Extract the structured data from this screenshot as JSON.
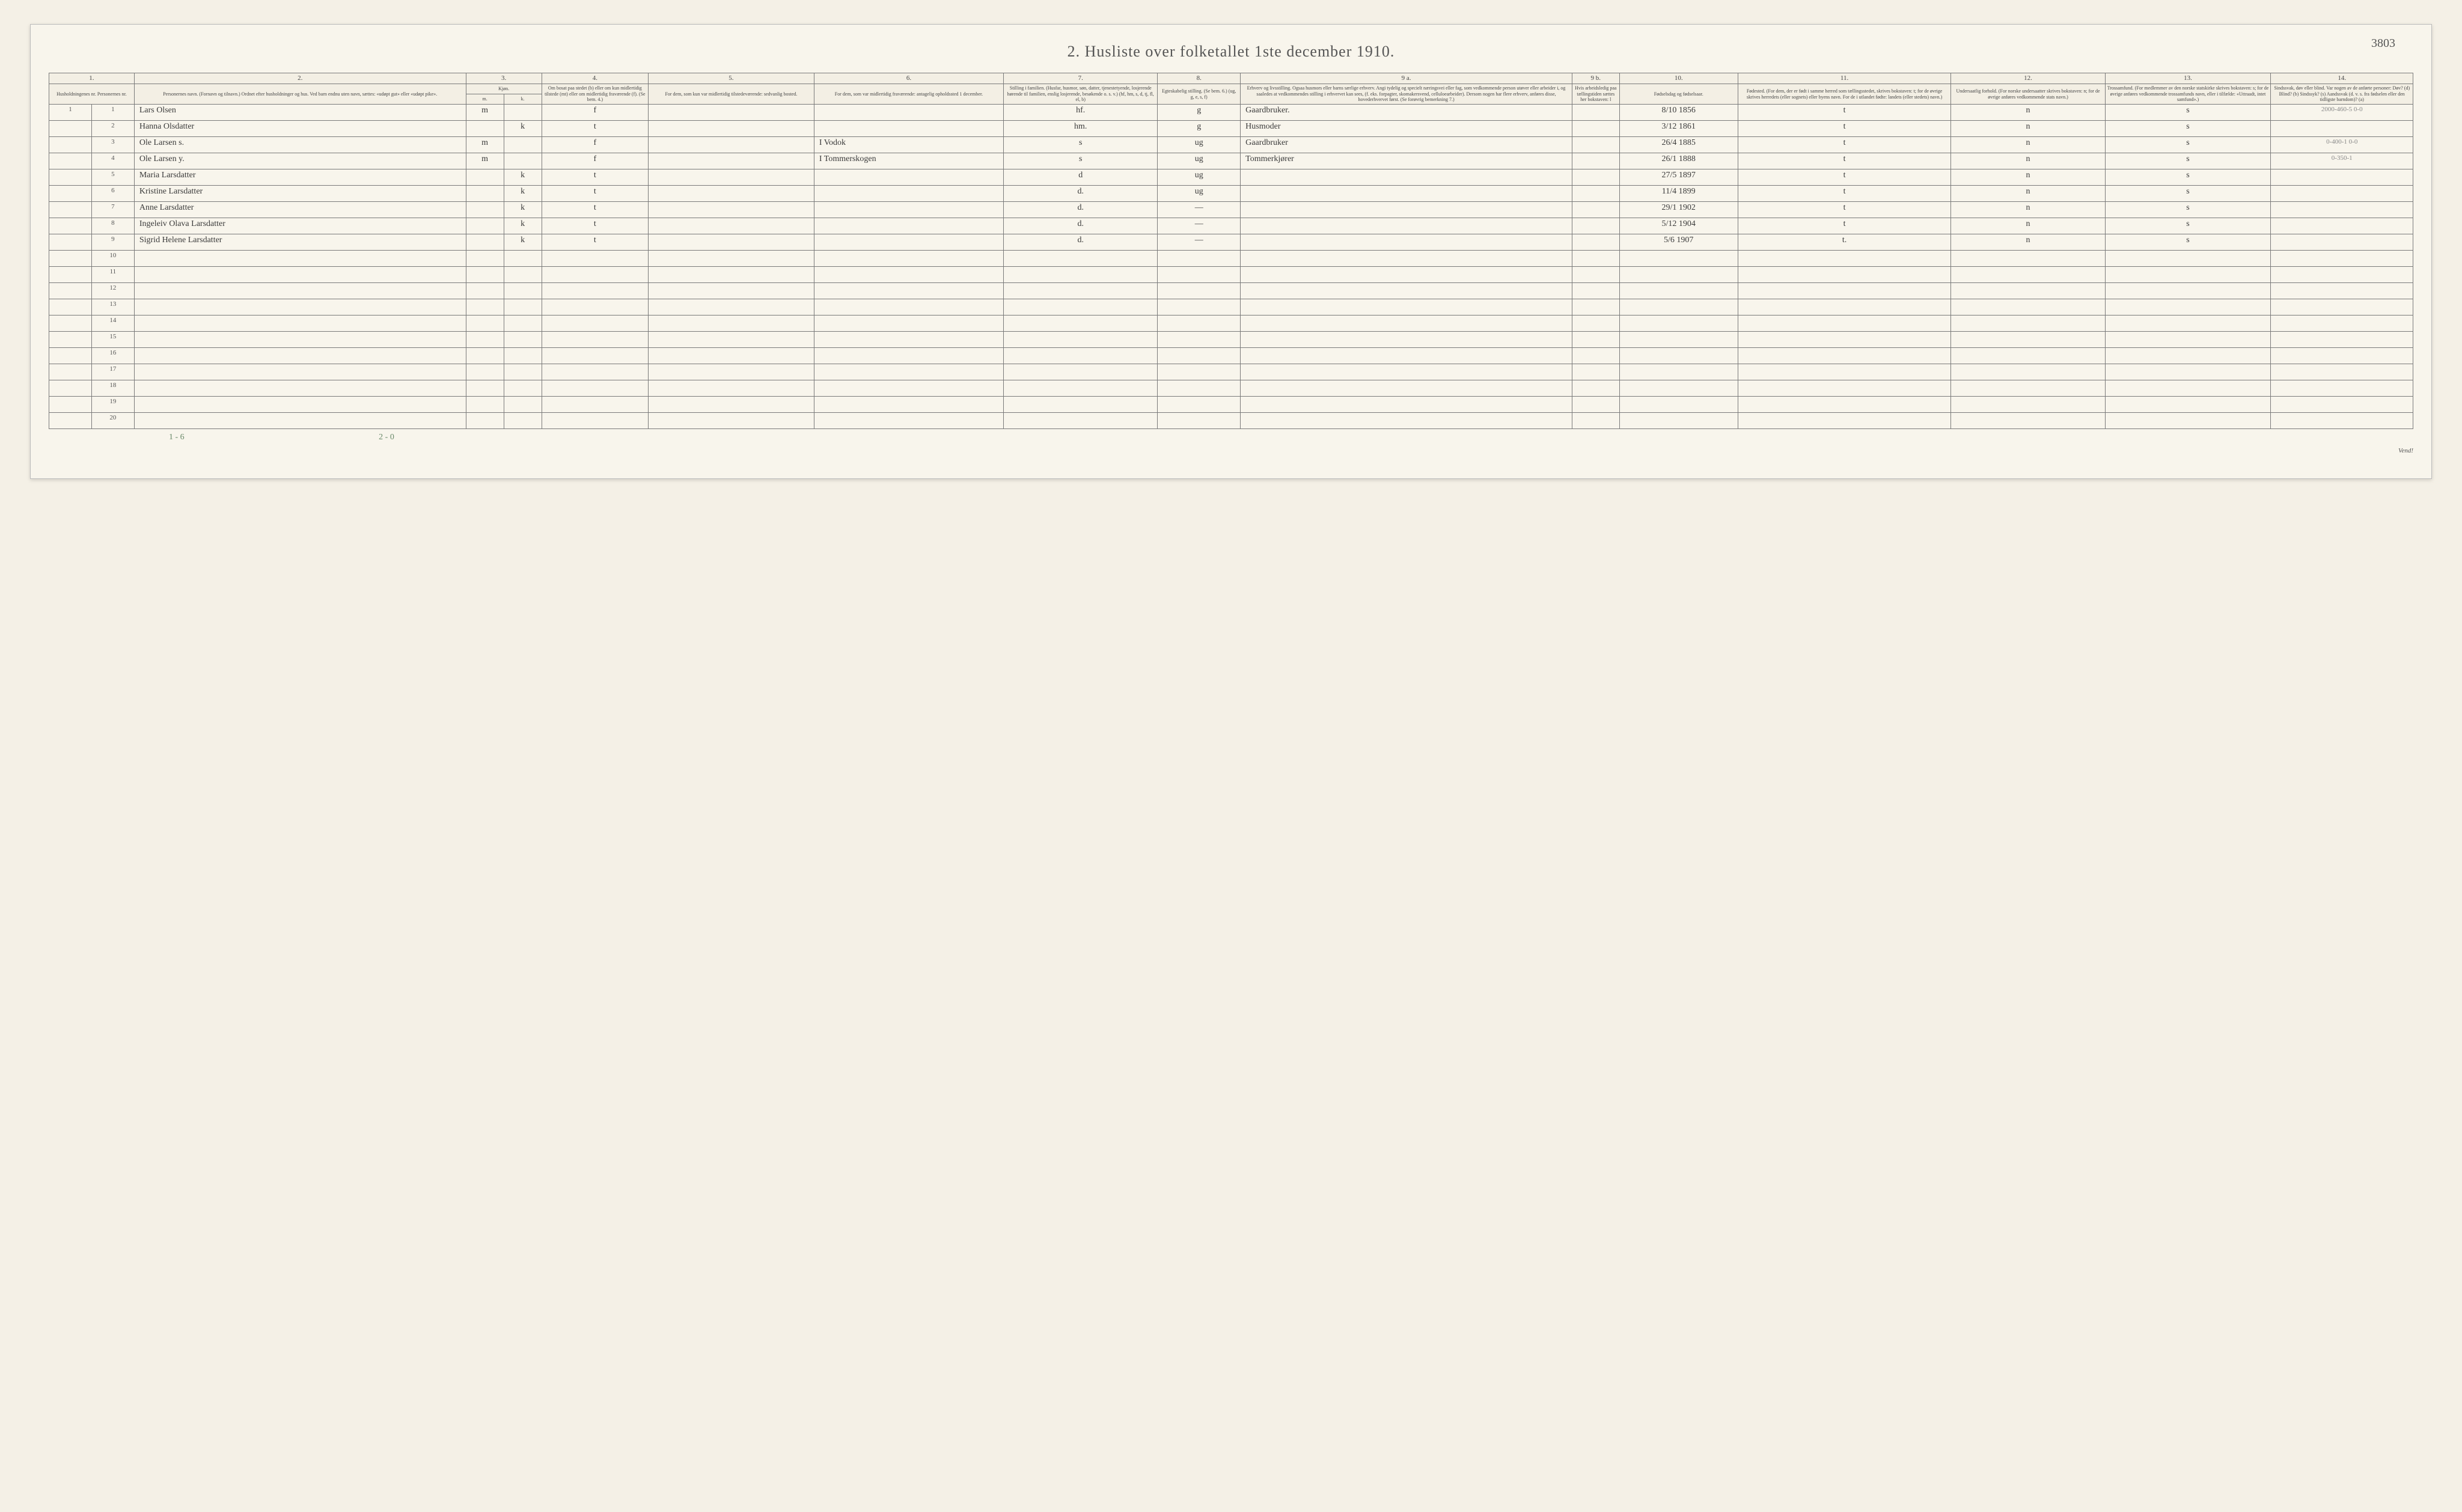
{
  "page_corner": "3803",
  "title": "2.  Husliste over folketallet 1ste december 1910.",
  "col_numbers": [
    "1.",
    "2.",
    "3.",
    "4.",
    "5.",
    "6.",
    "7.",
    "8.",
    "9 a.",
    "9 b.",
    "10.",
    "11.",
    "12.",
    "13.",
    "14."
  ],
  "headers": {
    "c1": "Husholdningenes nr.\nPersonernes nr.",
    "c2": "Personernes navn.\n(Fornavn og tilnavn.)\nOrdnet efter husholdninger og hus.\nVed barn endnu uten navn, sættes: «udøpt gut» eller «udøpt pike».",
    "c3": "Kjøn.",
    "c3m": "Mænd.",
    "c3k": "Kvinder.",
    "c4": "Om bosat paa stedet (b) eller om kun midlertidig tilstede (mt) eller om midlertidig fraværende (f). (Se bem. 4.)",
    "c5": "For dem, som kun var midlertidig tilstedeværende:\nsedvanlig bosted.",
    "c6": "For dem, som var midlertidig fraværende:\nantagelig opholdssted 1 december.",
    "c7": "Stilling i familien.\n(Husfar, husmor, søn, datter, tjenestetyende, losjerende hørende til familien, enslig losjerende, besøkende o. s. v.)\n(hf, hm, s, d, tj, fl, el, b)",
    "c8": "Egteskabelig stilling.\n(Se bem. 6.)\n(ug, g, e, s, f)",
    "c9a": "Erhverv og livsstilling.\nOgsaa husmors eller barns særlige erhverv. Angi tydelig og specielt næringsvei eller fag, som vedkommende person utøver eller arbeider i, og saaledes at vedkommendes stilling i erhvervet kan sees, (f. eks. forpagter, skomakersvend, celluloearbeider). Dersom nogen har flere erhverv, anføres disse, hovederhvervet først. (Se forøvrig bemerkning 7.)",
    "c9b": "Hvis arbeidsledig paa tællingstiden sættes her bokstaven: l",
    "c10": "Fødselsdag og fødselsaar.",
    "c11": "Fødested.\n(For dem, der er født i samme herred som tællingsstedet, skrives bokstaven: t; for de øvrige skrives herredets (eller sognets) eller byens navn. For de i utlandet fødte: landets (eller stedets) navn.)",
    "c12": "Undersaatlig forhold.\n(For norske undersaatter skrives bokstaven: n; for de øvrige anføres vedkommende stats navn.)",
    "c13": "Trossamfund.\n(For medlemmer av den norske statskirke skrives bokstaven: s; for de øvrige anføres vedkommende trossamfunds navn, eller i tilfælde: «Uttraadt, intet samfund».)",
    "c14": "Sindssvak, døv eller blind.\nVar nogen av de anførte personer:\nDøv? (d)\nBlind? (b)\nSindssyk? (s)\nAandssvak (d. v. s. fra fødselen eller den tidligste barndom)? (a)"
  },
  "rows": [
    {
      "hh": "1",
      "pn": "1",
      "name": "Lars Olsen",
      "m": "m",
      "k": "",
      "bf": "f",
      "c5": "",
      "c6": "",
      "fam": "hf.",
      "eg": "g",
      "erv": "Gaardbruker.",
      "l": "",
      "fd": "8/10 1856",
      "fs": "t",
      "us": "n",
      "tr": "s",
      "c14": "",
      "annot": "2000-460-5  0-0"
    },
    {
      "hh": "",
      "pn": "2",
      "name": "Hanna Olsdatter",
      "m": "",
      "k": "k",
      "bf": "t",
      "c5": "",
      "c6": "",
      "fam": "hm.",
      "eg": "g",
      "erv": "Husmoder",
      "l": "",
      "fd": "3/12 1861",
      "fs": "t",
      "us": "n",
      "tr": "s",
      "c14": "",
      "annot": ""
    },
    {
      "hh": "",
      "pn": "3",
      "name": "Ole Larsen s.",
      "m": "m",
      "k": "",
      "bf": "f",
      "c5": "",
      "c6": "I Vodok",
      "fam": "s",
      "eg": "ug",
      "erv": "Gaardbruker",
      "l": "",
      "fd": "26/4 1885",
      "fs": "t",
      "us": "n",
      "tr": "s",
      "c14": "",
      "annot": "0-400-1  0-0"
    },
    {
      "hh": "",
      "pn": "4",
      "name": "Ole Larsen y.",
      "m": "m",
      "k": "",
      "bf": "f",
      "c5": "",
      "c6": "I Tommerskogen",
      "fam": "s",
      "eg": "ug",
      "erv": "Tommerkjører",
      "l": "",
      "fd": "26/1 1888",
      "fs": "t",
      "us": "n",
      "tr": "s",
      "c14": "",
      "annot": "0-350-1"
    },
    {
      "hh": "",
      "pn": "5",
      "name": "Maria Larsdatter",
      "m": "",
      "k": "k",
      "bf": "t",
      "c5": "",
      "c6": "",
      "fam": "d",
      "eg": "ug",
      "erv": "",
      "l": "",
      "fd": "27/5 1897",
      "fs": "t",
      "us": "n",
      "tr": "s",
      "c14": "",
      "annot": ""
    },
    {
      "hh": "",
      "pn": "6",
      "name": "Kristine Larsdatter",
      "m": "",
      "k": "k",
      "bf": "t",
      "c5": "",
      "c6": "",
      "fam": "d.",
      "eg": "ug",
      "erv": "",
      "l": "",
      "fd": "11/4 1899",
      "fs": "t",
      "us": "n",
      "tr": "s",
      "c14": "",
      "annot": ""
    },
    {
      "hh": "",
      "pn": "7",
      "name": "Anne Larsdatter",
      "m": "",
      "k": "k",
      "bf": "t",
      "c5": "",
      "c6": "",
      "fam": "d.",
      "eg": "—",
      "erv": "",
      "l": "",
      "fd": "29/1 1902",
      "fs": "t",
      "us": "n",
      "tr": "s",
      "c14": "",
      "annot": ""
    },
    {
      "hh": "",
      "pn": "8",
      "name": "Ingeleiv Olava Larsdatter",
      "m": "",
      "k": "k",
      "bf": "t",
      "c5": "",
      "c6": "",
      "fam": "d.",
      "eg": "—",
      "erv": "",
      "l": "",
      "fd": "5/12 1904",
      "fs": "t",
      "us": "n",
      "tr": "s",
      "c14": "",
      "annot": ""
    },
    {
      "hh": "",
      "pn": "9",
      "name": "Sigrid Helene Larsdatter",
      "m": "",
      "k": "k",
      "bf": "t",
      "c5": "",
      "c6": "",
      "fam": "d.",
      "eg": "—",
      "erv": "",
      "l": "",
      "fd": "5/6 1907",
      "fs": "t.",
      "us": "n",
      "tr": "s",
      "c14": "",
      "annot": ""
    }
  ],
  "empty_row_labels": [
    "10",
    "11",
    "12",
    "13",
    "14",
    "15",
    "16",
    "17",
    "18",
    "19",
    "20"
  ],
  "footer_left": "1 - 6",
  "footer_mid": "2 - 0",
  "footer_page": "2",
  "vend": "Vend!",
  "col_widths_pct": [
    1.8,
    1.8,
    14,
    1.6,
    1.6,
    4.5,
    7,
    8,
    6.5,
    3.5,
    14,
    2,
    5,
    9,
    6.5,
    7,
    6
  ],
  "colors": {
    "paper": "#f8f5ec",
    "border": "#7a7a7a",
    "ink": "#3a3a3a",
    "pencil": "#888"
  }
}
